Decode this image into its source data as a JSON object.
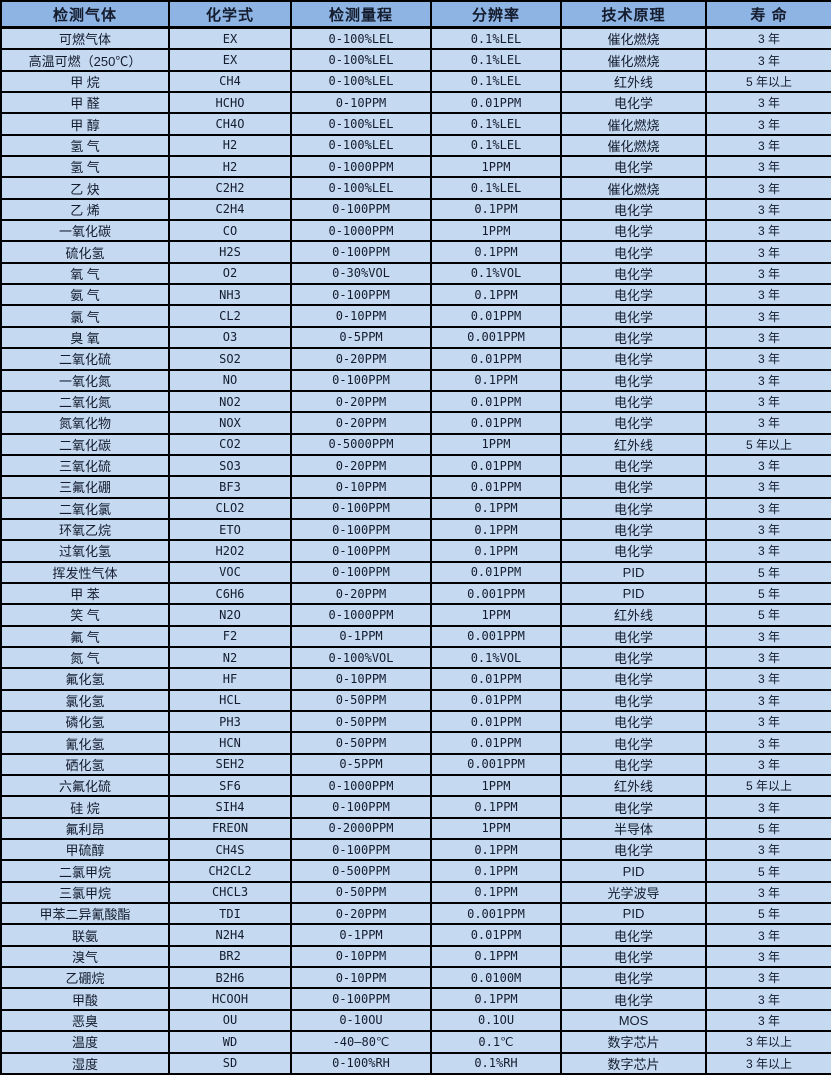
{
  "colors": {
    "header_bg": "#8db4e2",
    "row_bg": "#c5d9f1",
    "border": "#000000",
    "text": "#141c2e"
  },
  "table": {
    "columns": [
      {
        "key": "gas",
        "label": "检测气体"
      },
      {
        "key": "formula",
        "label": "化学式"
      },
      {
        "key": "range",
        "label": "检测量程"
      },
      {
        "key": "resolution",
        "label": "分辨率"
      },
      {
        "key": "principle",
        "label": "技术原理"
      },
      {
        "key": "lifespan",
        "label": "寿 命"
      }
    ],
    "rows": [
      [
        "可燃气体",
        "EX",
        "0-100%LEL",
        "0.1%LEL",
        "催化燃烧",
        "3 年"
      ],
      [
        "高温可燃（250℃）",
        "EX",
        "0-100%LEL",
        "0.1%LEL",
        "催化燃烧",
        "3 年"
      ],
      [
        "甲 烷",
        "CH4",
        "0-100%LEL",
        "0.1%LEL",
        "红外线",
        "5 年以上"
      ],
      [
        "甲 醛",
        "HCHO",
        "0-10PPM",
        "0.01PPM",
        "电化学",
        "3 年"
      ],
      [
        "甲 醇",
        "CH4O",
        "0-100%LEL",
        "0.1%LEL",
        "催化燃烧",
        "3 年"
      ],
      [
        "氢 气",
        "H2",
        "0-100%LEL",
        "0.1%LEL",
        "催化燃烧",
        "3 年"
      ],
      [
        "氢 气",
        "H2",
        "0-1000PPM",
        "1PPM",
        "电化学",
        "3 年"
      ],
      [
        "乙 炔",
        "C2H2",
        "0-100%LEL",
        "0.1%LEL",
        "催化燃烧",
        "3 年"
      ],
      [
        "乙 烯",
        "C2H4",
        "0-100PPM",
        "0.1PPM",
        "电化学",
        "3 年"
      ],
      [
        "一氧化碳",
        "CO",
        "0-1000PPM",
        "1PPM",
        "电化学",
        "3 年"
      ],
      [
        "硫化氢",
        "H2S",
        "0-100PPM",
        "0.1PPM",
        "电化学",
        "3 年"
      ],
      [
        "氧 气",
        "O2",
        "0-30%VOL",
        "0.1%VOL",
        "电化学",
        "3 年"
      ],
      [
        "氨 气",
        "NH3",
        "0-100PPM",
        "0.1PPM",
        "电化学",
        "3 年"
      ],
      [
        "氯 气",
        "CL2",
        "0-10PPM",
        "0.01PPM",
        "电化学",
        "3 年"
      ],
      [
        "臭 氧",
        "O3",
        "0-5PPM",
        "0.001PPM",
        "电化学",
        "3 年"
      ],
      [
        "二氧化硫",
        "SO2",
        "0-20PPM",
        "0.01PPM",
        "电化学",
        "3 年"
      ],
      [
        "一氧化氮",
        "NO",
        "0-100PPM",
        "0.1PPM",
        "电化学",
        "3 年"
      ],
      [
        "二氧化氮",
        "NO2",
        "0-20PPM",
        "0.01PPM",
        "电化学",
        "3 年"
      ],
      [
        "氮氧化物",
        "NOX",
        "0-20PPM",
        "0.01PPM",
        "电化学",
        "3 年"
      ],
      [
        "二氧化碳",
        "CO2",
        "0-5000PPM",
        "1PPM",
        "红外线",
        "5 年以上"
      ],
      [
        "三氧化硫",
        "SO3",
        "0-20PPM",
        "0.01PPM",
        "电化学",
        "3 年"
      ],
      [
        "三氟化硼",
        "BF3",
        "0-10PPM",
        "0.01PPM",
        "电化学",
        "3 年"
      ],
      [
        "二氧化氯",
        "CLO2",
        "0-100PPM",
        "0.1PPM",
        "电化学",
        "3 年"
      ],
      [
        "环氧乙烷",
        "ETO",
        "0-100PPM",
        "0.1PPM",
        "电化学",
        "3 年"
      ],
      [
        "过氧化氢",
        "H2O2",
        "0-100PPM",
        "0.1PPM",
        "电化学",
        "3 年"
      ],
      [
        "挥发性气体",
        "VOC",
        "0-100PPM",
        "0.01PPM",
        "PID",
        "5 年"
      ],
      [
        "甲  苯",
        "C6H6",
        "0-20PPM",
        "0.001PPM",
        "PID",
        "5 年"
      ],
      [
        "笑 气",
        "N2O",
        "0-1000PPM",
        "1PPM",
        "红外线",
        "5 年"
      ],
      [
        "氟 气",
        "F2",
        "0-1PPM",
        "0.001PPM",
        "电化学",
        "3 年"
      ],
      [
        "氮 气",
        "N2",
        "0-100%VOL",
        "0.1%VOL",
        "电化学",
        "3 年"
      ],
      [
        "氟化氢",
        "HF",
        "0-10PPM",
        "0.01PPM",
        "电化学",
        "3 年"
      ],
      [
        "氯化氢",
        "HCL",
        "0-50PPM",
        "0.01PPM",
        "电化学",
        "3 年"
      ],
      [
        "磷化氢",
        "PH3",
        "0-50PPM",
        "0.01PPM",
        "电化学",
        "3 年"
      ],
      [
        "氰化氢",
        "HCN",
        "0-50PPM",
        "0.01PPM",
        "电化学",
        "3 年"
      ],
      [
        "硒化氢",
        "SEH2",
        "0-5PPM",
        "0.001PPM",
        "电化学",
        "3 年"
      ],
      [
        "六氟化硫",
        "SF6",
        "0-1000PPM",
        "1PPM",
        "红外线",
        "5 年以上"
      ],
      [
        "硅 烷",
        "SIH4",
        "0-100PPM",
        "0.1PPM",
        "电化学",
        "3 年"
      ],
      [
        "氟利昂",
        "FREON",
        "0-2000PPM",
        "1PPM",
        "半导体",
        "5 年"
      ],
      [
        "甲硫醇",
        "CH4S",
        "0-100PPM",
        "0.1PPM",
        "电化学",
        "3 年"
      ],
      [
        "二氯甲烷",
        "CH2CL2",
        "0-500PPM",
        "0.1PPM",
        "PID",
        "5 年"
      ],
      [
        "三氯甲烷",
        "CHCL3",
        "0-50PPM",
        "0.1PPM",
        "光学波导",
        "3 年"
      ],
      [
        "甲苯二异氰酸酯",
        "TDI",
        "0-20PPM",
        "0.001PPM",
        "PID",
        "5 年"
      ],
      [
        "联氨",
        "N2H4",
        "0-1PPM",
        "0.01PPM",
        "电化学",
        "3 年"
      ],
      [
        "溴气",
        "BR2",
        "0-10PPM",
        "0.1PPM",
        "电化学",
        "3 年"
      ],
      [
        "乙硼烷",
        "B2H6",
        "0-10PPM",
        "0.0100M",
        "电化学",
        "3 年"
      ],
      [
        "甲酸",
        "HCOOH",
        "0-100PPM",
        "0.1PPM",
        "电化学",
        "3 年"
      ],
      [
        "恶臭",
        "OU",
        "0-10OU",
        "0.1OU",
        "MOS",
        "3 年"
      ],
      [
        "温度",
        "WD",
        "-40—80℃",
        "0.1℃",
        "数字芯片",
        "3 年以上"
      ],
      [
        "湿度",
        "SD",
        "0-100%RH",
        "0.1%RH",
        "数字芯片",
        "3 年以上"
      ]
    ]
  }
}
